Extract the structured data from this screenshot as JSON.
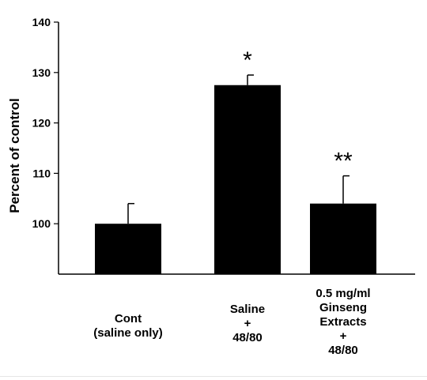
{
  "chart_data": {
    "type": "bar",
    "title": "",
    "xlabel": "",
    "ylabel": "Percent of control",
    "ylim": [
      90,
      140
    ],
    "y_ticks": [
      100,
      110,
      120,
      130,
      140
    ],
    "grid": false,
    "legend": "none",
    "bar_color": "#000000",
    "categories": [
      "Cont\n(saline only)",
      "Saline\n+\n48/80",
      "0.5 mg/ml\nGinseng\nExtracts\n+\n48/80"
    ],
    "values": [
      100,
      127.5,
      104
    ],
    "errors": [
      4,
      2,
      5.5
    ],
    "annotations": [
      "",
      "*",
      "**"
    ]
  }
}
